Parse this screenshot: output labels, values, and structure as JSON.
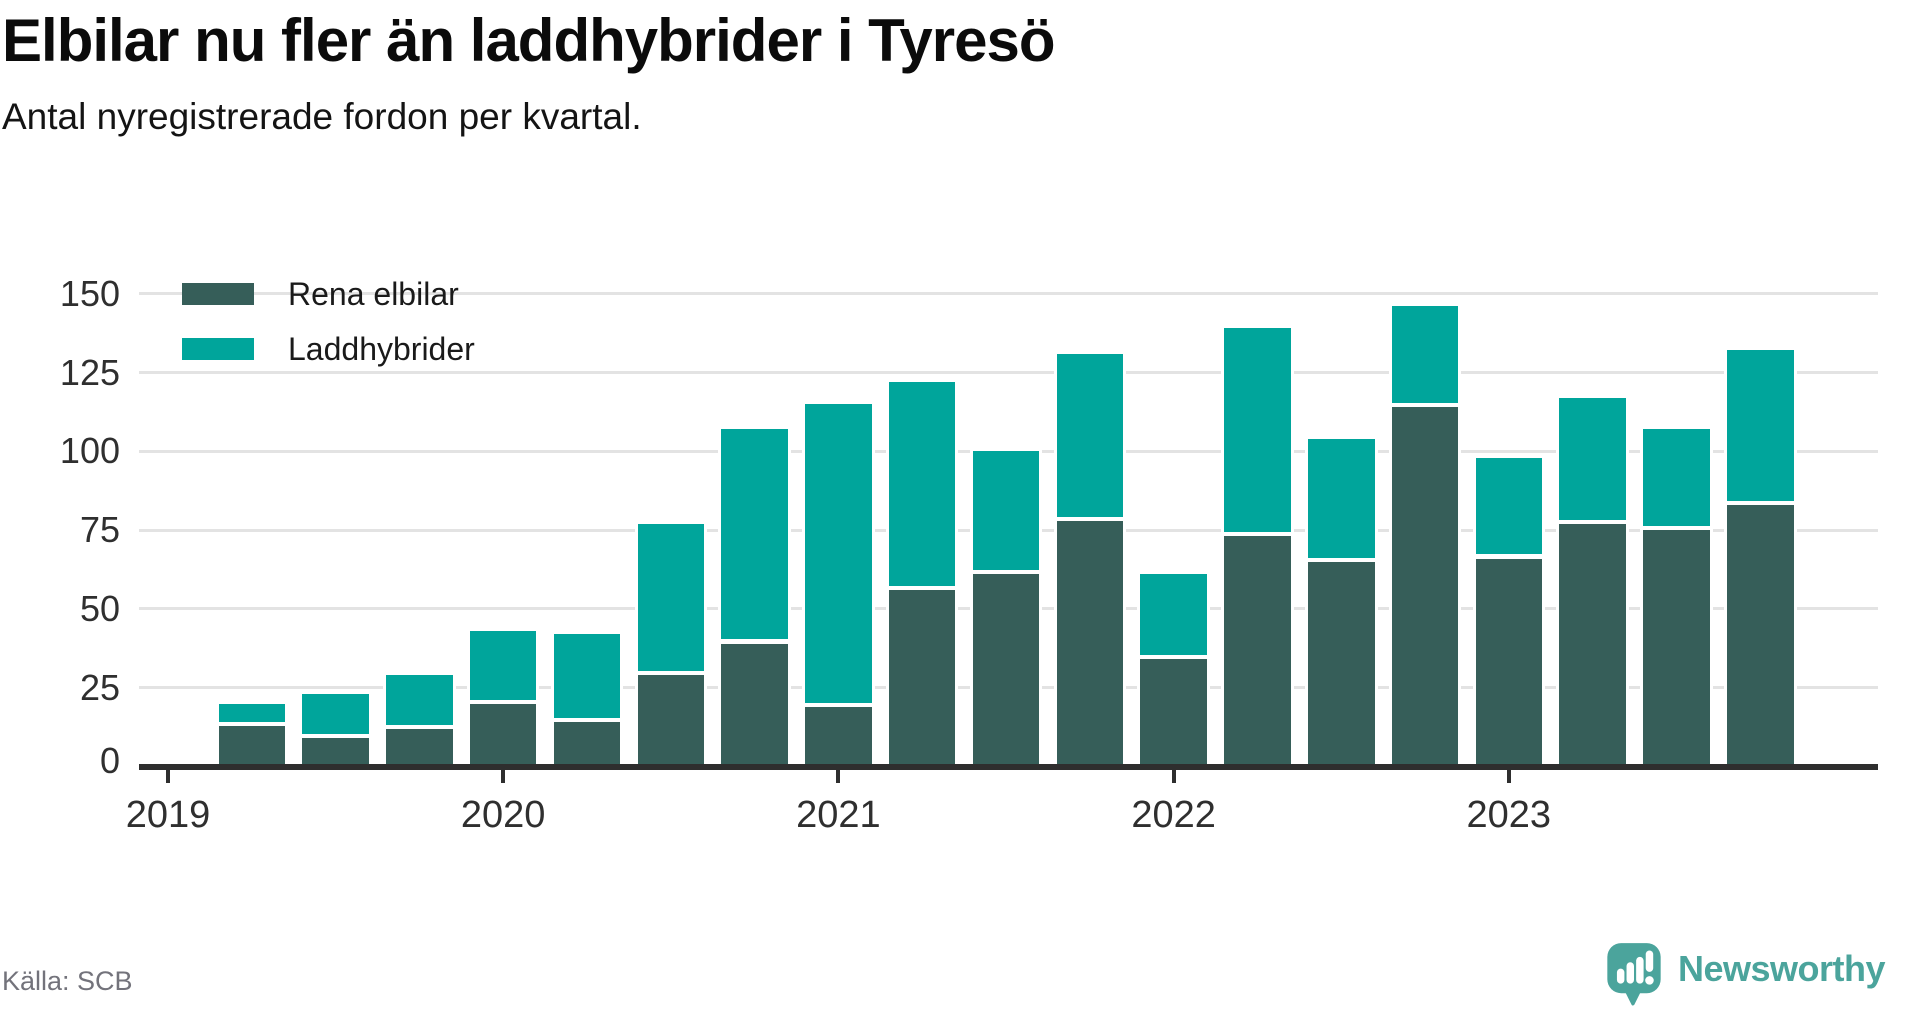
{
  "header": {
    "title": "Elbilar nu fler än laddhybrider i Tyresö",
    "subtitle": "Antal nyregistrerade fordon per kvartal."
  },
  "footer": {
    "source_label": "Källa: SCB",
    "brand": "Newsworthy"
  },
  "colors": {
    "background": "#ffffff",
    "grid": "#e3e3e3",
    "axis": "#2e2e2e",
    "tick_label": "#2f2f2f",
    "title": "#0b0b0b",
    "source": "#73737b",
    "brand_teal": "#4ba49c",
    "bar_outline": "#ffffff"
  },
  "chart_data": {
    "type": "bar",
    "stacked": true,
    "title": "Elbilar nu fler än laddhybrider i Tyresö",
    "subtitle": "Antal nyregistrerade fordon per kvartal.",
    "xlabel": "",
    "ylabel": "",
    "ylim": [
      0,
      150
    ],
    "yticks": [
      0,
      25,
      50,
      75,
      100,
      125,
      150
    ],
    "grid": "horizontal",
    "legend_position": "top-left",
    "categories": [
      "2019K2",
      "2019K3",
      "2019K4",
      "2020K1",
      "2020K2",
      "2020K3",
      "2020K4",
      "2021K1",
      "2021K2",
      "2021K3",
      "2021K4",
      "2022K1",
      "2022K2",
      "2022K3",
      "2022K4",
      "2023K1",
      "2023K2",
      "2023K3",
      "2023K4"
    ],
    "series": [
      {
        "name": "Rena elbilar",
        "color": "#365e59",
        "values": [
          13,
          9,
          12,
          20,
          14,
          29,
          39,
          19,
          56,
          61,
          78,
          34,
          73,
          65,
          114,
          66,
          77,
          75,
          83
        ]
      },
      {
        "name": "Laddhybrider",
        "color": "#00a59b",
        "values": [
          7,
          14,
          17,
          23,
          28,
          48,
          68,
          96,
          66,
          39,
          53,
          27,
          66,
          39,
          32,
          32,
          40,
          32,
          49
        ]
      }
    ],
    "xticks": [
      {
        "label": "2019",
        "quarter": "2019K1"
      },
      {
        "label": "2020",
        "quarter": "2020K1"
      },
      {
        "label": "2021",
        "quarter": "2021K1"
      },
      {
        "label": "2022",
        "quarter": "2022K1"
      },
      {
        "label": "2023",
        "quarter": "2023K1"
      }
    ]
  }
}
